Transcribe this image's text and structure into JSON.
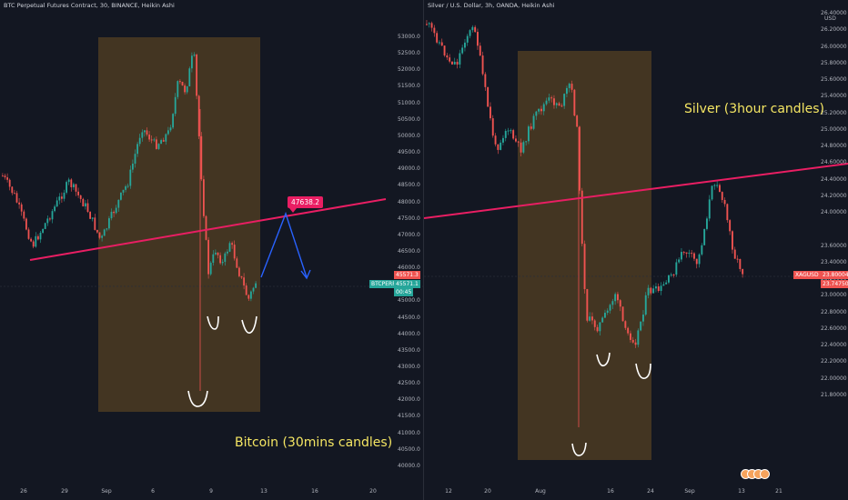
{
  "left_chart": {
    "title": "BTC Perpetual Futures Contract, 30, BINANCE, Heikin Ashi",
    "y_labels": [
      "53000.0",
      "52500.0",
      "52000.0",
      "51500.0",
      "51000.0",
      "50500.0",
      "50000.0",
      "49500.0",
      "49000.0",
      "48500.0",
      "48000.0",
      "47500.0",
      "47000.0",
      "46500.0",
      "46000.0",
      "45000.0",
      "44500.0",
      "44000.0",
      "43500.0",
      "43000.0",
      "42500.0",
      "42000.0",
      "41500.0",
      "41000.0",
      "40500.0",
      "40000.0"
    ],
    "x_labels": [
      "26",
      "29",
      "Sep",
      "6",
      "9",
      "13",
      "16",
      "20"
    ],
    "price_tag": "45571.3",
    "symbol_tag": "BTCPERP",
    "last_price": "45571.1",
    "countdown": "00:45",
    "callout": "47638.2",
    "annotation": "Bitcoin (30mins candles)"
  },
  "right_chart": {
    "title": "Silver / U.S. Dollar, 3h, OANDA, Heikin Ashi",
    "currency": "USD",
    "y_labels": [
      "26.40000",
      "26.20000",
      "26.00000",
      "25.80000",
      "25.60000",
      "25.40000",
      "25.20000",
      "25.00000",
      "24.80000",
      "24.60000",
      "24.40000",
      "24.20000",
      "24.00000",
      "23.60000",
      "23.40000",
      "23.20000",
      "23.00000",
      "22.80000",
      "22.60000",
      "22.40000",
      "22.20000",
      "22.00000",
      "21.80000"
    ],
    "x_labels": [
      "12",
      "20",
      "Aug",
      "16",
      "24",
      "Sep",
      "13",
      "21"
    ],
    "symbol_tag": "XAGUSD",
    "price_tag": "23.80004",
    "last_price": "23.74750",
    "annotation": "Silver (3hour candles)"
  },
  "colors": {
    "up": "#26a69a",
    "down": "#ef5350",
    "trendline": "#e91e63",
    "box": "#6b4f22",
    "arrow": "#2962ff",
    "text_yellow": "#f5e663"
  }
}
